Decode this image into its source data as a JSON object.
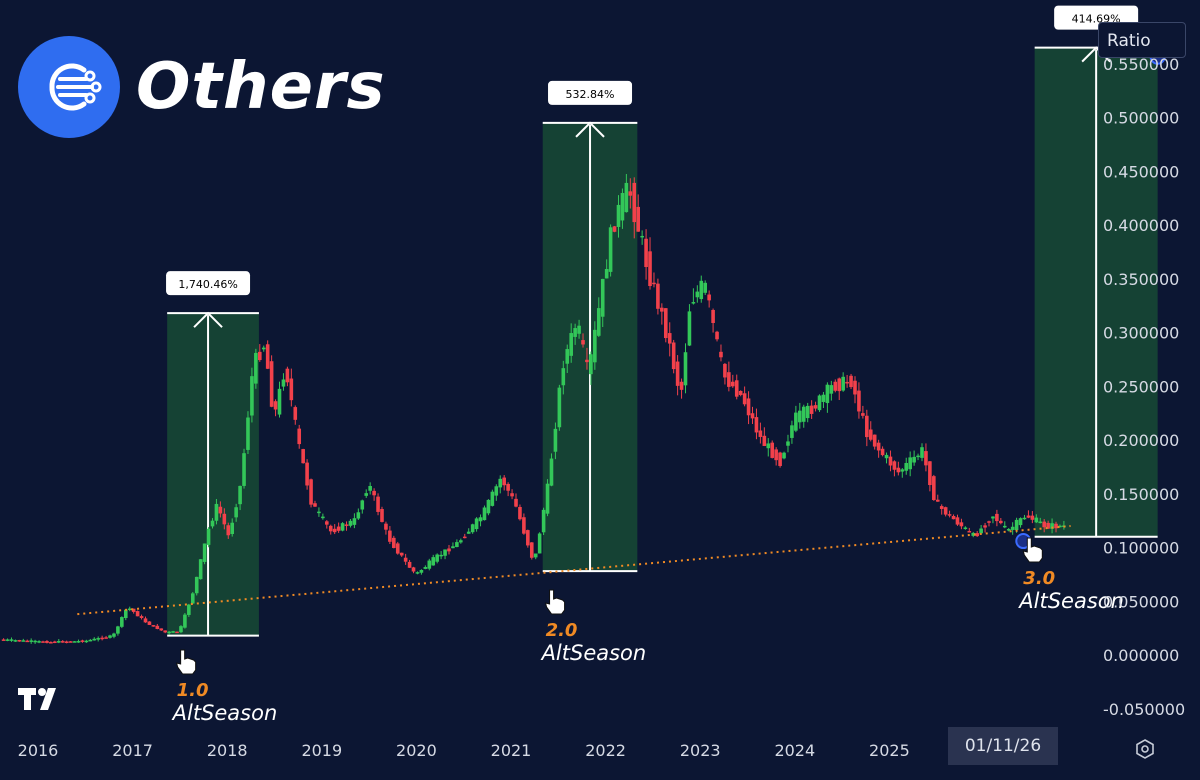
{
  "header": {
    "title": "Others",
    "scale_button": "Ratio",
    "date_badge": "01/11/26"
  },
  "colors": {
    "background": "#0c1633",
    "up_candle": "#33c759",
    "down_candle": "#f2414b",
    "zone_fill": "#174a35",
    "support_line": "#f08a24",
    "annotation_label": "#f08a24",
    "logo_bg": "#2f6df0"
  },
  "icons": [
    "network-logo-icon",
    "hand-pointer-icon",
    "tradingview-logo-icon",
    "settings-icon"
  ],
  "chart_data": {
    "type": "candlestick",
    "title": "Others",
    "xlabel": "",
    "ylabel": "",
    "ylim": [
      -0.06,
      0.58
    ],
    "x_ticks": [
      "2016",
      "2017",
      "2018",
      "2019",
      "2020",
      "2021",
      "2022",
      "2023",
      "2024",
      "2025",
      "2026"
    ],
    "y_ticks": [
      "0.550000",
      "0.500000",
      "0.450000",
      "0.400000",
      "0.350000",
      "0.300000",
      "0.250000",
      "0.200000",
      "0.150000",
      "0.100000",
      "0.050000",
      "0.000000",
      "-0.050000"
    ],
    "grid": false,
    "series": [
      {
        "price_points": [
          [
            2015.6,
            0.015
          ],
          [
            2016.2,
            0.012
          ],
          [
            2016.6,
            0.013
          ],
          [
            2016.9,
            0.018
          ],
          [
            2017.05,
            0.045
          ],
          [
            2017.25,
            0.03
          ],
          [
            2017.45,
            0.021
          ],
          [
            2017.6,
            0.022
          ],
          [
            2017.75,
            0.06
          ],
          [
            2017.9,
            0.115
          ],
          [
            2018.0,
            0.14
          ],
          [
            2018.12,
            0.11
          ],
          [
            2018.25,
            0.16
          ],
          [
            2018.38,
            0.27
          ],
          [
            2018.5,
            0.29
          ],
          [
            2018.6,
            0.22
          ],
          [
            2018.72,
            0.27
          ],
          [
            2018.85,
            0.2
          ],
          [
            2019.0,
            0.14
          ],
          [
            2019.2,
            0.115
          ],
          [
            2019.45,
            0.125
          ],
          [
            2019.6,
            0.16
          ],
          [
            2019.8,
            0.11
          ],
          [
            2020.0,
            0.085
          ],
          [
            2020.1,
            0.075
          ],
          [
            2020.3,
            0.09
          ],
          [
            2020.55,
            0.105
          ],
          [
            2020.8,
            0.13
          ],
          [
            2021.0,
            0.165
          ],
          [
            2021.15,
            0.14
          ],
          [
            2021.35,
            0.085
          ],
          [
            2021.5,
            0.16
          ],
          [
            2021.65,
            0.27
          ],
          [
            2021.8,
            0.31
          ],
          [
            2021.92,
            0.26
          ],
          [
            2022.05,
            0.33
          ],
          [
            2022.18,
            0.4
          ],
          [
            2022.35,
            0.435
          ],
          [
            2022.55,
            0.36
          ],
          [
            2022.75,
            0.3
          ],
          [
            2022.9,
            0.24
          ],
          [
            2023.0,
            0.33
          ],
          [
            2023.15,
            0.345
          ],
          [
            2023.35,
            0.26
          ],
          [
            2023.55,
            0.24
          ],
          [
            2023.75,
            0.2
          ],
          [
            2023.95,
            0.18
          ],
          [
            2024.1,
            0.22
          ],
          [
            2024.3,
            0.23
          ],
          [
            2024.5,
            0.25
          ],
          [
            2024.7,
            0.255
          ],
          [
            2024.85,
            0.21
          ],
          [
            2025.0,
            0.19
          ],
          [
            2025.2,
            0.17
          ],
          [
            2025.45,
            0.19
          ],
          [
            2025.6,
            0.14
          ],
          [
            2025.8,
            0.125
          ],
          [
            2026.0,
            0.11
          ],
          [
            2026.2,
            0.13
          ],
          [
            2026.35,
            0.115
          ],
          [
            2026.55,
            0.13
          ],
          [
            2026.75,
            0.12
          ],
          [
            2026.9,
            0.12
          ]
        ]
      }
    ],
    "support_line": {
      "x": [
        2016.5,
        2027.0
      ],
      "y": [
        0.038,
        0.12
      ]
    },
    "zones": [
      {
        "x": [
          2017.45,
          2018.42
        ],
        "y": [
          0.018,
          0.318
        ],
        "label": "1,740.46%"
      },
      {
        "x": [
          2021.42,
          2022.42
        ],
        "y": [
          0.078,
          0.495
        ],
        "label": "532.84%"
      },
      {
        "x": [
          2026.62,
          2027.92
        ],
        "y": [
          0.11,
          0.565
        ],
        "label": "414.69%"
      }
    ],
    "annotations": [
      {
        "x": 2017.55,
        "number": "1.0",
        "text": "AltSeason"
      },
      {
        "x": 2021.45,
        "number": "2.0",
        "text": "AltSeason"
      },
      {
        "x": 2026.5,
        "number": "3.0",
        "text": "AltSeason"
      }
    ]
  }
}
